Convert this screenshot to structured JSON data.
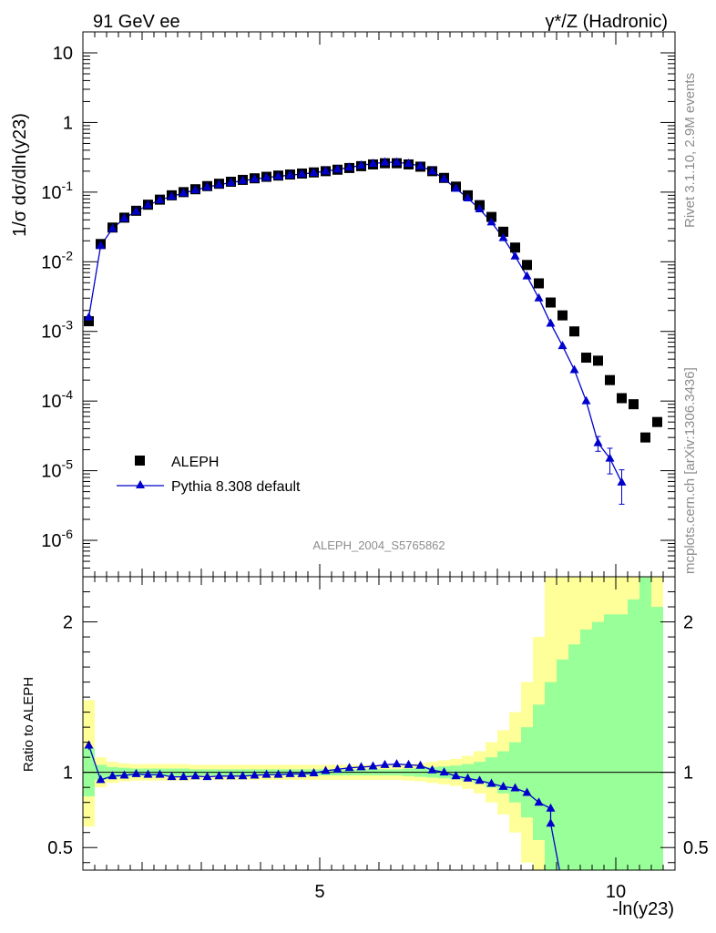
{
  "header": {
    "left": "91 GeV ee",
    "right": "γ*/Z (Hadronic)"
  },
  "side_labels": {
    "rivet": "Rivet 3.1.10,  2.9M events",
    "source": "mcplots.cern.ch [arXiv:1306.3436]"
  },
  "analysis_label": "ALEPH_2004_S5765862",
  "chart_data": [
    {
      "type": "scatter",
      "xlabel": "-ln(y23)",
      "ylabel": "1/σ dσ/dln(y23)",
      "ylim": [
        3e-07,
        20
      ],
      "yscale": "log",
      "xlim": [
        1.0,
        11.0
      ],
      "y_tick_labels": [
        "10^-6",
        "10^-5",
        "10^-4",
        "10^-3",
        "10^-2",
        "10^-1",
        "1",
        "10"
      ],
      "legend_position": "bottom-left",
      "series": [
        {
          "name": "ALEPH",
          "marker": "square",
          "color": "#000000",
          "x": [
            1.1,
            1.3,
            1.5,
            1.7,
            1.9,
            2.1,
            2.3,
            2.5,
            2.7,
            2.9,
            3.1,
            3.3,
            3.5,
            3.7,
            3.9,
            4.1,
            4.3,
            4.5,
            4.7,
            4.9,
            5.1,
            5.3,
            5.5,
            5.7,
            5.9,
            6.1,
            6.3,
            6.5,
            6.7,
            6.9,
            7.1,
            7.3,
            7.5,
            7.7,
            7.9,
            8.1,
            8.3,
            8.5,
            8.7,
            8.9,
            9.1,
            9.3,
            9.5,
            9.7,
            9.9,
            10.1,
            10.3,
            10.5,
            10.7
          ],
          "y": [
            0.0014,
            0.018,
            0.031,
            0.043,
            0.054,
            0.066,
            0.078,
            0.09,
            0.1,
            0.11,
            0.122,
            0.132,
            0.141,
            0.15,
            0.158,
            0.166,
            0.173,
            0.179,
            0.185,
            0.192,
            0.2,
            0.21,
            0.222,
            0.236,
            0.25,
            0.26,
            0.26,
            0.25,
            0.232,
            0.2,
            0.16,
            0.12,
            0.09,
            0.065,
            0.044,
            0.027,
            0.016,
            0.009,
            0.0049,
            0.0026,
            0.0017,
            0.001,
            0.00042,
            0.00038,
            0.0002,
            0.00011,
            9e-05,
            3e-05,
            5e-05
          ]
        },
        {
          "name": "Pythia 8.308 default",
          "marker": "triangle",
          "color": "#0000cc",
          "x": [
            1.1,
            1.3,
            1.5,
            1.7,
            1.9,
            2.1,
            2.3,
            2.5,
            2.7,
            2.9,
            3.1,
            3.3,
            3.5,
            3.7,
            3.9,
            4.1,
            4.3,
            4.5,
            4.7,
            4.9,
            5.1,
            5.3,
            5.5,
            5.7,
            5.9,
            6.1,
            6.3,
            6.5,
            6.7,
            6.9,
            7.1,
            7.3,
            7.5,
            7.7,
            7.9,
            8.1,
            8.3,
            8.5,
            8.7,
            8.9,
            9.1,
            9.3,
            9.5,
            9.7,
            9.9,
            10.1
          ],
          "y": [
            0.0016,
            0.017,
            0.03,
            0.042,
            0.053,
            0.065,
            0.077,
            0.087,
            0.097,
            0.107,
            0.118,
            0.128,
            0.137,
            0.146,
            0.154,
            0.162,
            0.169,
            0.175,
            0.182,
            0.19,
            0.2,
            0.212,
            0.226,
            0.242,
            0.257,
            0.268,
            0.268,
            0.257,
            0.237,
            0.2,
            0.155,
            0.113,
            0.082,
            0.057,
            0.037,
            0.022,
            0.012,
            0.0062,
            0.003,
            0.0013,
            0.00062,
            0.00028,
            0.0001,
            2.5e-05,
            1.5e-05,
            6.8e-06
          ],
          "yerr": [
            0,
            0,
            0,
            0,
            0,
            0,
            0,
            0,
            0,
            0,
            0,
            0,
            0,
            0,
            0,
            0,
            0,
            0,
            0,
            0,
            0,
            0,
            0,
            0,
            0,
            0,
            0,
            0,
            0,
            0,
            0,
            0,
            0,
            0,
            0,
            0,
            0,
            0,
            0,
            0,
            0,
            0,
            0,
            6e-06,
            6e-06,
            3.5e-06
          ]
        }
      ]
    },
    {
      "type": "line",
      "xlabel": "-ln(y23)",
      "ylabel": "Ratio to ALEPH",
      "xlim": [
        1.0,
        11.0
      ],
      "ylim": [
        0.35,
        2.3
      ],
      "x_ticks": [
        5,
        10
      ],
      "y_ticks": [
        0.5,
        1,
        2
      ],
      "bands": {
        "edges": [
          1.0,
          1.2,
          1.4,
          1.6,
          1.8,
          2.0,
          2.2,
          2.4,
          2.6,
          2.8,
          3.0,
          3.2,
          3.4,
          3.6,
          3.8,
          4.0,
          4.2,
          4.4,
          4.6,
          4.8,
          5.0,
          5.2,
          5.4,
          5.6,
          5.8,
          6.0,
          6.2,
          6.4,
          6.6,
          6.8,
          7.0,
          7.2,
          7.4,
          7.6,
          7.8,
          8.0,
          8.2,
          8.4,
          8.6,
          8.8,
          9.0,
          9.2,
          9.4,
          9.6,
          9.8,
          10.0,
          10.2,
          10.4,
          10.6,
          10.8
        ],
        "green_lo": [
          0.84,
          0.95,
          0.965,
          0.97,
          0.975,
          0.975,
          0.975,
          0.975,
          0.975,
          0.98,
          0.98,
          0.98,
          0.98,
          0.98,
          0.98,
          0.98,
          0.98,
          0.98,
          0.98,
          0.98,
          0.98,
          0.98,
          0.98,
          0.98,
          0.98,
          0.98,
          0.98,
          0.975,
          0.97,
          0.965,
          0.96,
          0.955,
          0.945,
          0.93,
          0.9,
          0.86,
          0.8,
          0.7,
          0.55,
          0.2,
          0.1,
          0.1,
          0.1,
          0.1,
          0.1,
          0.1,
          0.1,
          0.1,
          0.1
        ],
        "green_hi": [
          1.16,
          1.05,
          1.035,
          1.03,
          1.025,
          1.025,
          1.025,
          1.025,
          1.025,
          1.02,
          1.02,
          1.02,
          1.02,
          1.02,
          1.02,
          1.02,
          1.02,
          1.02,
          1.02,
          1.02,
          1.02,
          1.02,
          1.02,
          1.02,
          1.02,
          1.02,
          1.02,
          1.025,
          1.03,
          1.035,
          1.04,
          1.045,
          1.055,
          1.07,
          1.1,
          1.14,
          1.2,
          1.3,
          1.45,
          1.6,
          1.75,
          1.85,
          1.95,
          2.0,
          2.05,
          2.05,
          2.15,
          2.3,
          2.1
        ],
        "yellow_lo": [
          0.64,
          0.9,
          0.93,
          0.94,
          0.945,
          0.945,
          0.945,
          0.945,
          0.945,
          0.95,
          0.95,
          0.95,
          0.95,
          0.95,
          0.95,
          0.95,
          0.95,
          0.95,
          0.95,
          0.95,
          0.95,
          0.95,
          0.95,
          0.95,
          0.95,
          0.95,
          0.95,
          0.945,
          0.94,
          0.93,
          0.92,
          0.91,
          0.89,
          0.86,
          0.8,
          0.72,
          0.6,
          0.4,
          0.2,
          0.1,
          0.1,
          0.1,
          0.1,
          0.1,
          0.1,
          0.1,
          0.1,
          0.1,
          0.1
        ],
        "yellow_hi": [
          1.48,
          1.1,
          1.07,
          1.06,
          1.055,
          1.055,
          1.055,
          1.055,
          1.055,
          1.05,
          1.05,
          1.05,
          1.05,
          1.05,
          1.05,
          1.05,
          1.05,
          1.05,
          1.05,
          1.05,
          1.05,
          1.05,
          1.05,
          1.05,
          1.05,
          1.05,
          1.05,
          1.055,
          1.06,
          1.07,
          1.08,
          1.09,
          1.11,
          1.14,
          1.2,
          1.28,
          1.4,
          1.6,
          1.9,
          2.3,
          2.3,
          2.3,
          2.3,
          2.3,
          2.3,
          2.3,
          2.3,
          2.3,
          2.3
        ]
      },
      "colors": {
        "green": "#99ff99",
        "yellow": "#ffff99",
        "line": "#0000cc"
      },
      "series": [
        {
          "name": "Pythia 8.308 default",
          "x": [
            1.1,
            1.3,
            1.5,
            1.7,
            1.9,
            2.1,
            2.3,
            2.5,
            2.7,
            2.9,
            3.1,
            3.3,
            3.5,
            3.7,
            3.9,
            4.1,
            4.3,
            4.5,
            4.7,
            4.9,
            5.1,
            5.3,
            5.5,
            5.7,
            5.9,
            6.1,
            6.3,
            6.5,
            6.7,
            6.9,
            7.1,
            7.3,
            7.5,
            7.7,
            7.9,
            8.1,
            8.3,
            8.5,
            8.7,
            8.9
          ],
          "y": [
            1.18,
            0.95,
            0.975,
            0.98,
            0.99,
            0.985,
            0.985,
            0.97,
            0.97,
            0.975,
            0.97,
            0.975,
            0.975,
            0.975,
            0.98,
            0.985,
            0.985,
            0.99,
            0.99,
            0.995,
            1.01,
            1.02,
            1.03,
            1.035,
            1.04,
            1.05,
            1.055,
            1.05,
            1.045,
            1.015,
            1.0,
            0.975,
            0.96,
            0.945,
            0.925,
            0.905,
            0.895,
            0.865,
            0.8,
            0.76
          ],
          "tail": {
            "x": [
              8.9,
              9.05
            ],
            "y": [
              0.66,
              0.35
            ]
          }
        }
      ]
    }
  ],
  "ticks": {
    "ratio_y_labels": [
      "0.5",
      "1",
      "2"
    ],
    "x_labels": [
      "5",
      "10"
    ]
  }
}
